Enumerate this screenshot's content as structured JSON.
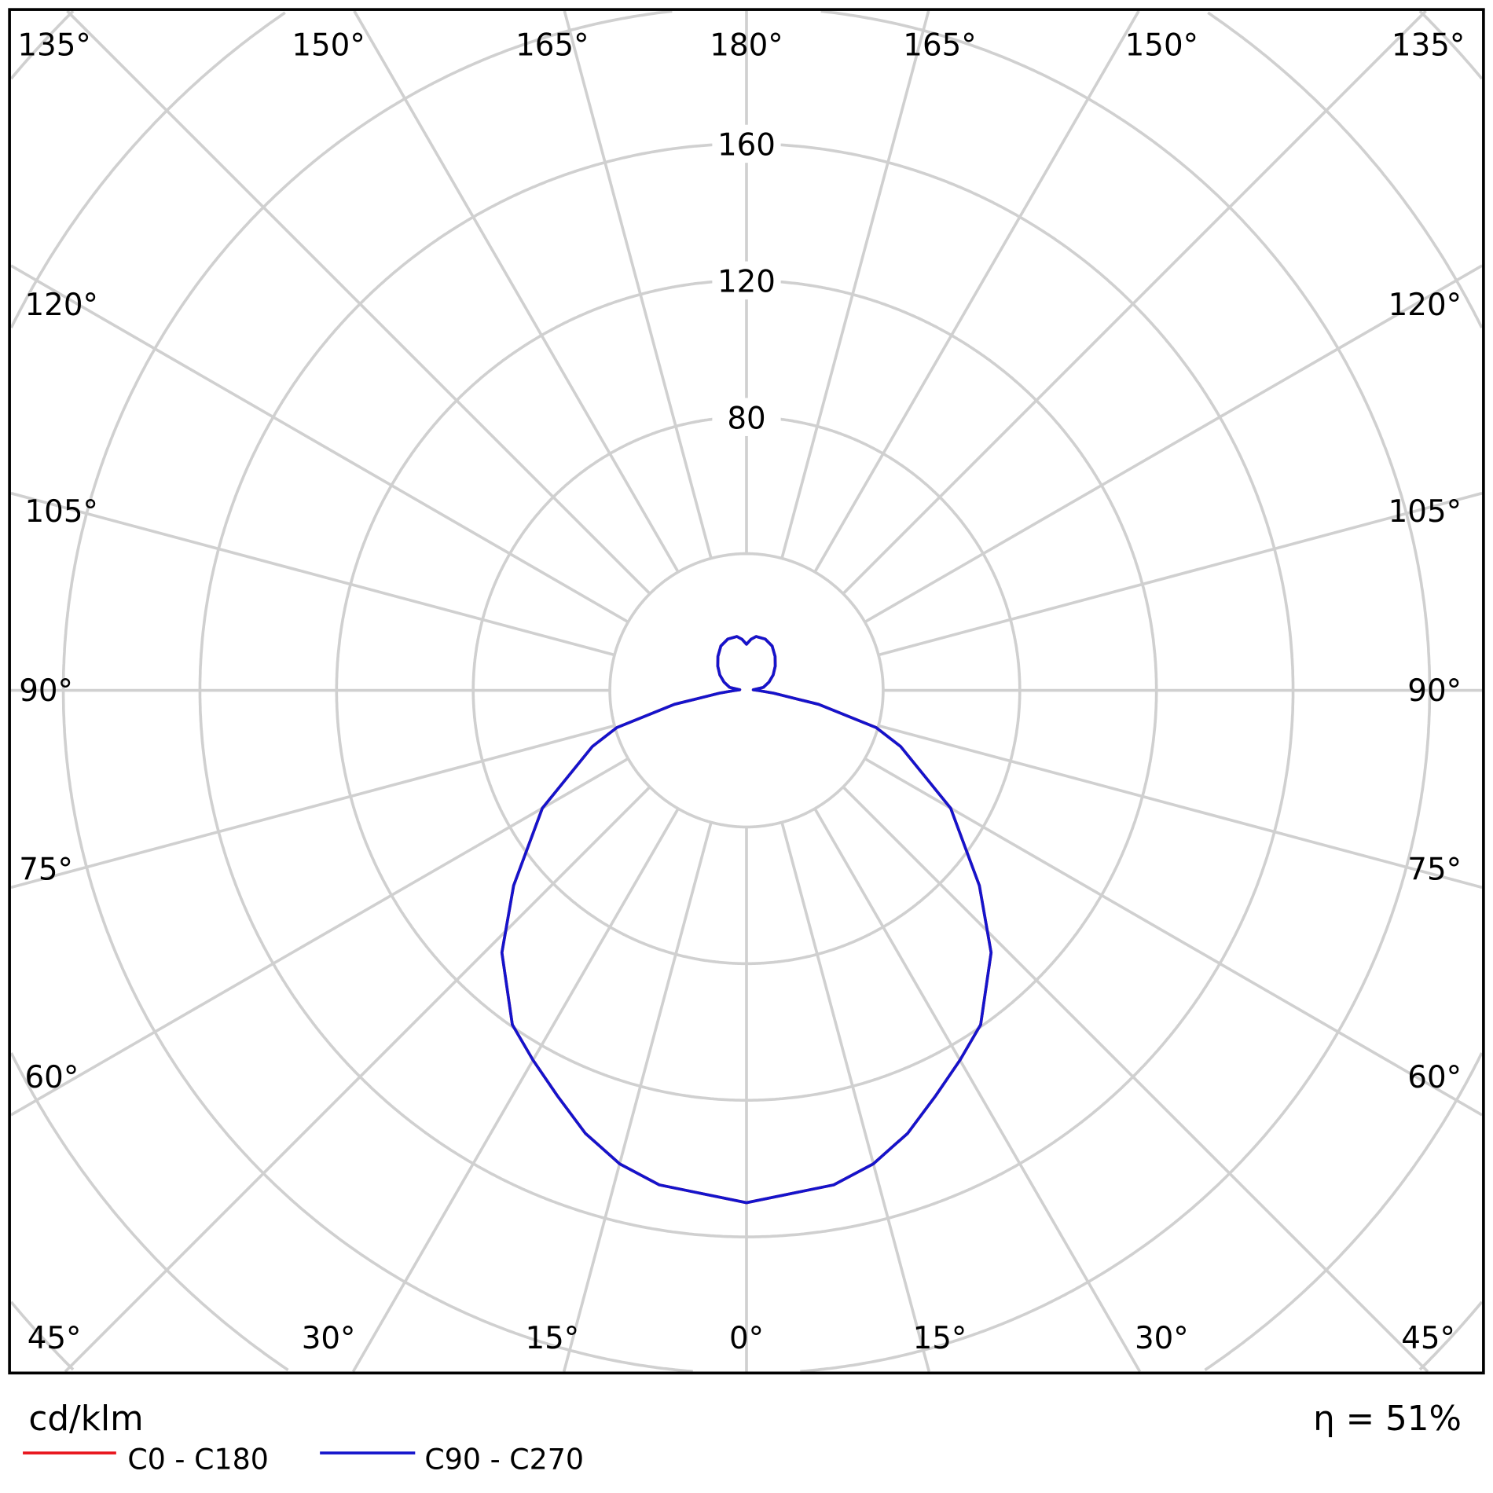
{
  "chart_data": {
    "type": "polar-line",
    "unit_label": "cd/klm",
    "efficiency_label": "η = 51%",
    "radial_ticks": [
      40,
      80,
      120,
      160,
      200,
      240,
      280,
      320
    ],
    "radial_tick_labels": [
      "80",
      "120",
      "160"
    ],
    "angle_labels": {
      "top": [
        "135°",
        "150°",
        "165°",
        "180°",
        "165°",
        "150°",
        "135°"
      ],
      "left": [
        "120°",
        "105°",
        "90°",
        "75°",
        "60°"
      ],
      "right": [
        "120°",
        "105°",
        "90°",
        "75°",
        "60°"
      ],
      "bottom": [
        "45°",
        "30°",
        "15°",
        "0°",
        "15°",
        "30°",
        "45°"
      ]
    },
    "grid": true,
    "legend_placement": "bottom-left",
    "gamma": [
      0,
      10,
      15,
      20,
      25,
      30,
      35,
      43,
      50,
      60,
      70,
      74,
      79,
      84,
      88,
      90,
      95,
      100,
      110,
      120,
      130,
      140,
      150,
      160,
      170,
      175,
      180
    ],
    "series": [
      {
        "name": "C0 - C180",
        "color": "#e8141c",
        "values": [
          150,
          147,
          143.5,
          138,
          131,
          125,
          119.5,
          105,
          89,
          69,
          48,
          39.5,
          21.5,
          8,
          4,
          3,
          2,
          5,
          7,
          9,
          11,
          13,
          15,
          16,
          16,
          15,
          13.5
        ]
      },
      {
        "name": "C90 - C270",
        "color": "#1414cc",
        "values": [
          150,
          147,
          143.5,
          138,
          131,
          125,
          119.5,
          105,
          89,
          69,
          48,
          39.5,
          21.5,
          8,
          4,
          3,
          2,
          5,
          7,
          9,
          11,
          13,
          15,
          16,
          16,
          15,
          13.5
        ]
      }
    ]
  }
}
